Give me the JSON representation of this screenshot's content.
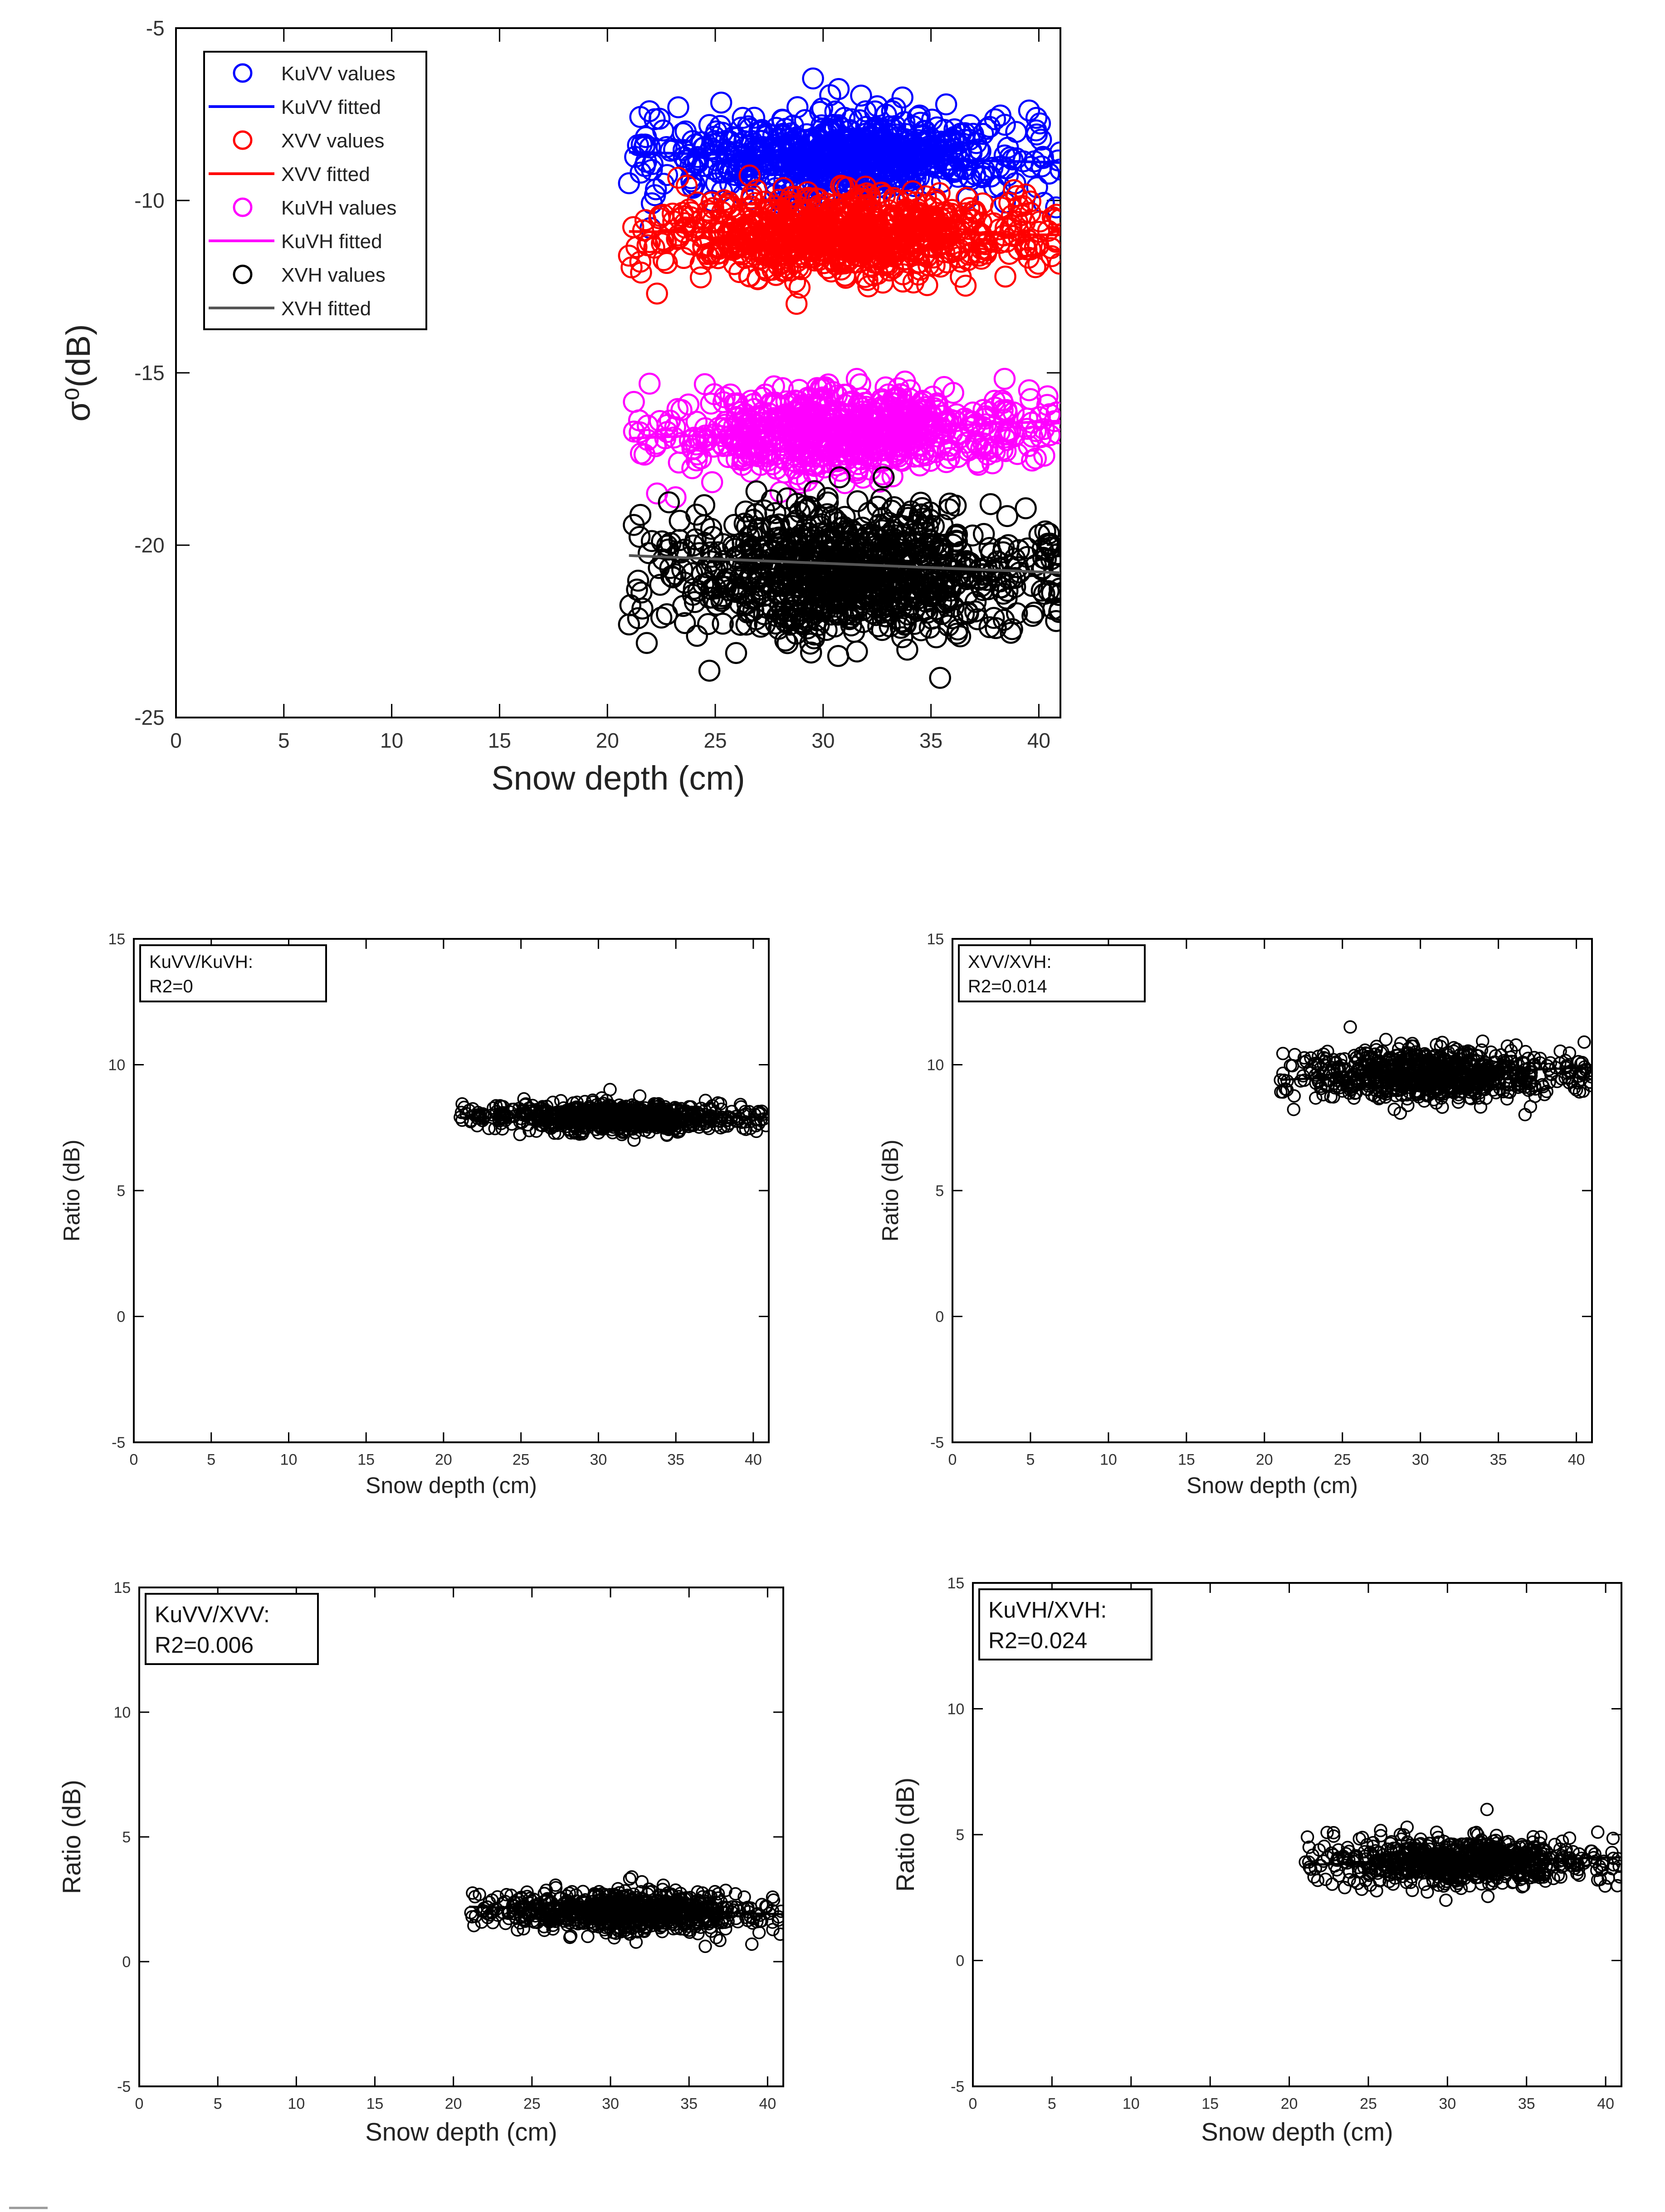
{
  "colors": {
    "blue": "#0000ff",
    "red": "#ff0000",
    "magenta": "#ff00ff",
    "black": "#000000",
    "gray": "#555555"
  },
  "chart_data": [
    {
      "id": "main",
      "type": "scatter",
      "xlabel": "Snow depth (cm)",
      "ylabel": "σ⁰(dB)",
      "xlim": [
        0,
        41
      ],
      "ylim": [
        -25,
        -5
      ],
      "xticks": [
        0,
        5,
        10,
        15,
        20,
        25,
        30,
        35,
        40
      ],
      "yticks": [
        -25,
        -20,
        -15,
        -10,
        -5
      ],
      "legend_position": "top-left",
      "legend": [
        "KuVV values",
        "KuVV fitted",
        "XVV values",
        "XVV fitted",
        "KuVH values",
        "KuVH fitted",
        "XVH values",
        "XVH fitted"
      ],
      "series": [
        {
          "name": "KuVV values",
          "kind": "points",
          "color": "#0000ff",
          "x_range": [
            21,
            41
          ],
          "y_center": -8.7,
          "y_spread": 0.6,
          "n": 700,
          "seed": 11,
          "outliers": [
            [
              21,
              -9.5
            ],
            [
              40.8,
              -10.2
            ],
            [
              22,
              -10.8
            ]
          ]
        },
        {
          "name": "KuVV fitted",
          "kind": "line",
          "color": "#0000ff",
          "x": [
            21,
            41
          ],
          "y": [
            -8.6,
            -8.9
          ]
        },
        {
          "name": "XVV values",
          "kind": "points",
          "color": "#ff0000",
          "x_range": [
            21,
            41
          ],
          "y_center": -11.0,
          "y_spread": 0.55,
          "n": 800,
          "seed": 23,
          "outliers": [
            [
              22.3,
              -12.7
            ],
            [
              21,
              -11.6
            ],
            [
              40.8,
              -11.2
            ]
          ]
        },
        {
          "name": "XVV fitted",
          "kind": "line",
          "color": "#ff0000",
          "x": [
            21,
            41
          ],
          "y": [
            -10.9,
            -11.0
          ]
        },
        {
          "name": "KuVH values",
          "kind": "points",
          "color": "#ff00ff",
          "x_range": [
            21,
            41
          ],
          "y_center": -16.7,
          "y_spread": 0.6,
          "n": 700,
          "seed": 37,
          "outliers": [
            [
              22.3,
              -18.5
            ],
            [
              40.5,
              -16.2
            ]
          ]
        },
        {
          "name": "KuVH fitted",
          "kind": "line",
          "color": "#ff00ff",
          "x": [
            21,
            41
          ],
          "y": [
            -16.9,
            -16.4
          ]
        },
        {
          "name": "XVH values",
          "kind": "points",
          "color": "#000000",
          "x_range": [
            21,
            41
          ],
          "y_center": -20.8,
          "y_spread": 0.9,
          "n": 900,
          "seed": 51,
          "outliers": [
            [
              21,
              -22.3
            ],
            [
              40.8,
              -22.2
            ],
            [
              40.5,
              -20.0
            ],
            [
              22.5,
              -22.1
            ]
          ]
        },
        {
          "name": "XVH fitted",
          "kind": "line",
          "color": "#555555",
          "x": [
            21,
            41
          ],
          "y": [
            -20.3,
            -20.8
          ]
        }
      ]
    },
    {
      "id": "kuvv_kuvh",
      "type": "scatter",
      "xlabel": "Snow depth (cm)",
      "ylabel": "Ratio (dB)",
      "xlim": [
        0,
        41
      ],
      "ylim": [
        -5,
        15
      ],
      "xticks": [
        0,
        5,
        10,
        15,
        20,
        25,
        30,
        35,
        40
      ],
      "yticks": [
        -5,
        0,
        5,
        10,
        15
      ],
      "annotation": [
        "KuVV/KuVH:",
        "R2=0"
      ],
      "series": [
        {
          "name": "KuVV/KuVH",
          "kind": "points",
          "color": "#000000",
          "x_range": [
            21,
            41
          ],
          "y_center": 7.9,
          "y_spread": 0.28,
          "n": 800,
          "seed": 61,
          "outliers": []
        },
        {
          "name": "fit",
          "kind": "line",
          "color": "#000000",
          "x": [
            21,
            41
          ],
          "y": [
            7.9,
            7.9
          ]
        }
      ]
    },
    {
      "id": "xvv_xvh",
      "type": "scatter",
      "xlabel": "Snow depth (cm)",
      "ylabel": "Ratio (dB)",
      "xlim": [
        0,
        41
      ],
      "ylim": [
        -5,
        15
      ],
      "xticks": [
        0,
        5,
        10,
        15,
        20,
        25,
        30,
        35,
        40
      ],
      "yticks": [
        -5,
        0,
        5,
        10,
        15
      ],
      "annotation": [
        "XVV/XVH:",
        "R2=0.014"
      ],
      "series": [
        {
          "name": "XVV/XVH",
          "kind": "points",
          "color": "#000000",
          "x_range": [
            21,
            41
          ],
          "y_center": 9.6,
          "y_spread": 0.5,
          "n": 800,
          "seed": 73,
          "outliers": [
            [
              25.5,
              11.5
            ],
            [
              40.5,
              10.9
            ],
            [
              40,
              9.0
            ]
          ]
        },
        {
          "name": "fit",
          "kind": "line",
          "color": "#000000",
          "x": [
            21,
            41
          ],
          "y": [
            9.4,
            9.9
          ]
        }
      ]
    },
    {
      "id": "kuvv_xvv",
      "type": "scatter",
      "xlabel": "Snow depth (cm)",
      "ylabel": "Ratio (dB)",
      "xlim": [
        0,
        41
      ],
      "ylim": [
        -5,
        15
      ],
      "xticks": [
        0,
        5,
        10,
        15,
        20,
        25,
        30,
        35,
        40
      ],
      "yticks": [
        -5,
        0,
        5,
        10,
        15
      ],
      "annotation": [
        "KuVV/XVV:",
        "R2=0.006"
      ],
      "series": [
        {
          "name": "KuVV/XVV",
          "kind": "points",
          "color": "#000000",
          "x_range": [
            21,
            41
          ],
          "y_center": 2.0,
          "y_spread": 0.4,
          "n": 800,
          "seed": 89,
          "outliers": [
            [
              40.8,
              1.1
            ],
            [
              39,
              0.7
            ],
            [
              32,
              3.2
            ]
          ]
        },
        {
          "name": "fit",
          "kind": "line",
          "color": "#000000",
          "x": [
            21,
            41
          ],
          "y": [
            2.2,
            1.9
          ]
        }
      ]
    },
    {
      "id": "kuvh_xvh",
      "type": "scatter",
      "xlabel": "Snow depth (cm)",
      "ylabel": "Ratio (dB)",
      "xlim": [
        0,
        41
      ],
      "ylim": [
        -5,
        15
      ],
      "xticks": [
        0,
        5,
        10,
        15,
        20,
        25,
        30,
        35,
        40
      ],
      "yticks": [
        -5,
        0,
        5,
        10,
        15
      ],
      "annotation": [
        "KuVH/XVH:",
        "R2=0.024"
      ],
      "series": [
        {
          "name": "KuVH/XVH",
          "kind": "points",
          "color": "#000000",
          "x_range": [
            21,
            41
          ],
          "y_center": 3.9,
          "y_spread": 0.45,
          "n": 800,
          "seed": 97,
          "outliers": [
            [
              32.5,
              6.0
            ],
            [
              39.5,
              5.1
            ],
            [
              40.5,
              3.8
            ],
            [
              39.5,
              3.2
            ]
          ]
        },
        {
          "name": "fit",
          "kind": "line",
          "color": "#000000",
          "x": [
            21,
            41
          ],
          "y": [
            3.8,
            4.1
          ]
        }
      ]
    }
  ]
}
